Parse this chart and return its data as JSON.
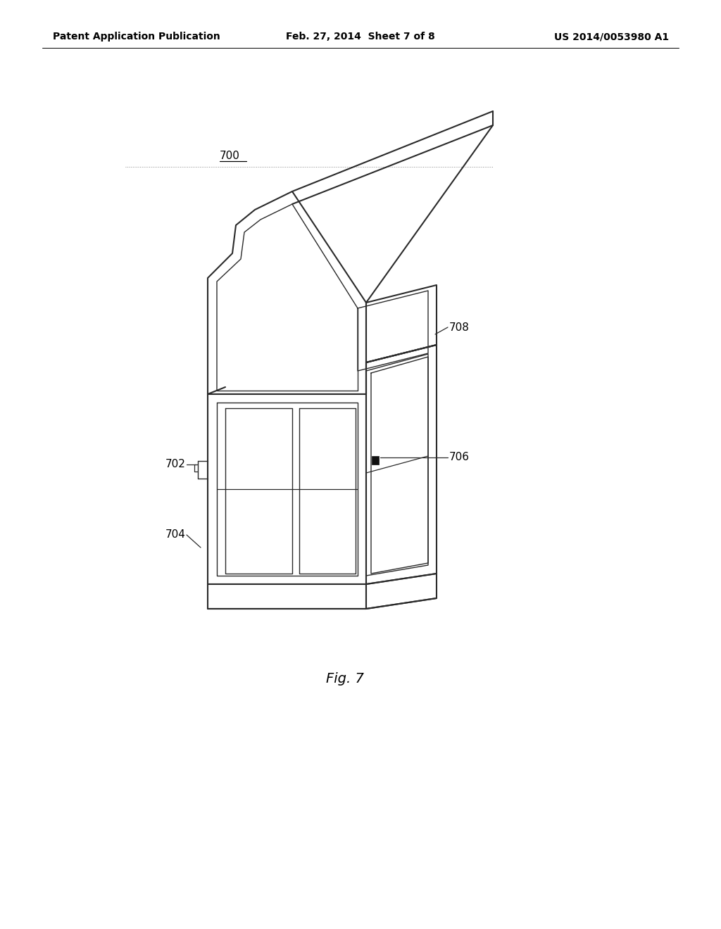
{
  "background_color": "#ffffff",
  "header_left": "Patent Application Publication",
  "header_center": "Feb. 27, 2014  Sheet 7 of 8",
  "header_right": "US 2014/0053980 A1",
  "header_fontsize": 10,
  "figure_label": "Fig. 7",
  "figure_label_fontsize": 14,
  "label_700": "700",
  "label_702": "702",
  "label_704": "704",
  "label_706": "706",
  "label_708": "708",
  "line_color": "#2a2a2a",
  "line_width": 1.5,
  "label_fontsize": 11,
  "dotted_line_color": "#888888"
}
